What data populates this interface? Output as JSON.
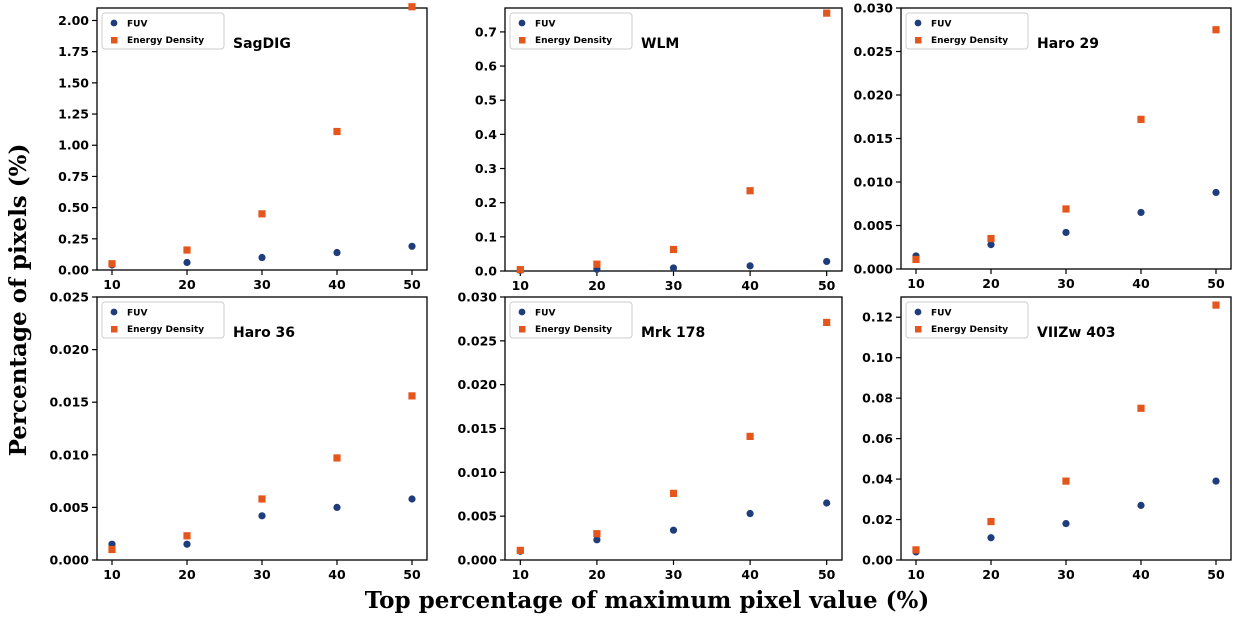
{
  "figure": {
    "xlabel": "Top percentage of maximum pixel value (%)",
    "ylabel": "Percentage of pixels (%)"
  },
  "colors": {
    "fuv": "#1f3d7a",
    "energy": "#e4561c"
  },
  "legend_labels": {
    "fuv": "FUV",
    "energy": "Energy Density"
  },
  "chart_data": [
    {
      "type": "scatter",
      "title": "SagDIG",
      "x": [
        10,
        20,
        30,
        40,
        50
      ],
      "xticks": [
        10,
        20,
        30,
        40,
        50
      ],
      "ylim": [
        0,
        2.1
      ],
      "yticks": [
        "0.00",
        "0.25",
        "0.50",
        "0.75",
        "1.00",
        "1.25",
        "1.50",
        "1.75",
        "2.00"
      ],
      "series": [
        {
          "name": "FUV",
          "values": [
            0.04,
            0.06,
            0.1,
            0.14,
            0.19
          ]
        },
        {
          "name": "Energy Density",
          "values": [
            0.05,
            0.16,
            0.45,
            1.11,
            2.11
          ]
        }
      ]
    },
    {
      "type": "scatter",
      "title": "WLM",
      "x": [
        10,
        20,
        30,
        40,
        50
      ],
      "xticks": [
        10,
        20,
        30,
        40,
        50
      ],
      "ylim": [
        0,
        0.77
      ],
      "yticks": [
        "0.0",
        "0.1",
        "0.2",
        "0.3",
        "0.4",
        "0.5",
        "0.6",
        "0.7"
      ],
      "series": [
        {
          "name": "FUV",
          "values": [
            0.002,
            0.005,
            0.009,
            0.015,
            0.028
          ]
        },
        {
          "name": "Energy Density",
          "values": [
            0.004,
            0.02,
            0.063,
            0.235,
            0.755
          ]
        }
      ]
    },
    {
      "type": "scatter",
      "title": "Haro 29",
      "x": [
        10,
        20,
        30,
        40,
        50
      ],
      "xticks": [
        10,
        20,
        30,
        40,
        50
      ],
      "ylim": [
        0,
        0.03
      ],
      "yticks": [
        "0.000",
        "0.005",
        "0.010",
        "0.015",
        "0.020",
        "0.025",
        "0.030"
      ],
      "series": [
        {
          "name": "FUV",
          "values": [
            0.0015,
            0.0028,
            0.0042,
            0.0065,
            0.0088
          ]
        },
        {
          "name": "Energy Density",
          "values": [
            0.0011,
            0.0035,
            0.0069,
            0.0172,
            0.0275
          ]
        }
      ]
    },
    {
      "type": "scatter",
      "title": "Haro 36",
      "x": [
        10,
        20,
        30,
        40,
        50
      ],
      "xticks": [
        10,
        20,
        30,
        40,
        50
      ],
      "ylim": [
        0,
        0.025
      ],
      "yticks": [
        "0.000",
        "0.005",
        "0.010",
        "0.015",
        "0.020",
        "0.025"
      ],
      "series": [
        {
          "name": "FUV",
          "values": [
            0.0015,
            0.0015,
            0.0042,
            0.005,
            0.0058
          ]
        },
        {
          "name": "Energy Density",
          "values": [
            0.001,
            0.0023,
            0.0058,
            0.0097,
            0.0156
          ]
        }
      ]
    },
    {
      "type": "scatter",
      "title": "Mrk 178",
      "x": [
        10,
        20,
        30,
        40,
        50
      ],
      "xticks": [
        10,
        20,
        30,
        40,
        50
      ],
      "ylim": [
        0,
        0.03
      ],
      "yticks": [
        "0.000",
        "0.005",
        "0.010",
        "0.015",
        "0.020",
        "0.025",
        "0.030"
      ],
      "series": [
        {
          "name": "FUV",
          "values": [
            0.001,
            0.0023,
            0.0034,
            0.0053,
            0.0065
          ]
        },
        {
          "name": "Energy Density",
          "values": [
            0.0011,
            0.003,
            0.0076,
            0.0141,
            0.0271
          ]
        }
      ]
    },
    {
      "type": "scatter",
      "title": "VIIZw 403",
      "x": [
        10,
        20,
        30,
        40,
        50
      ],
      "xticks": [
        10,
        20,
        30,
        40,
        50
      ],
      "ylim": [
        0,
        0.13
      ],
      "yticks": [
        "0.00",
        "0.02",
        "0.04",
        "0.06",
        "0.08",
        "0.10",
        "0.12"
      ],
      "series": [
        {
          "name": "FUV",
          "values": [
            0.004,
            0.011,
            0.018,
            0.027,
            0.039
          ]
        },
        {
          "name": "Energy Density",
          "values": [
            0.005,
            0.019,
            0.039,
            0.075,
            0.126
          ]
        }
      ]
    }
  ]
}
